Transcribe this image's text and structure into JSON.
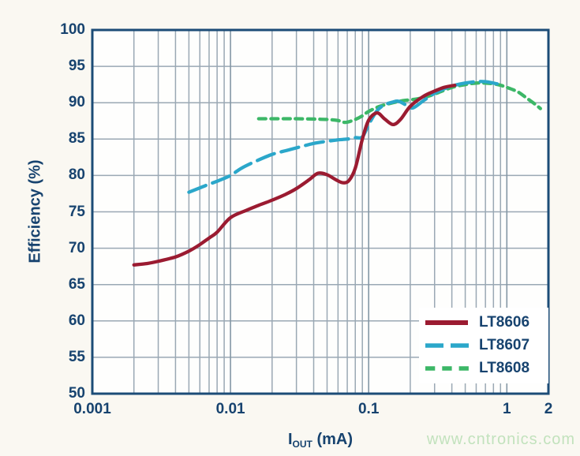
{
  "page": {
    "background": "#FAF8F2",
    "watermark": {
      "text": "www.cntronics.com",
      "color": "#C2E2BD"
    }
  },
  "chart_data": {
    "type": "line",
    "x_scale": "log",
    "xlabel_main": "I",
    "xlabel_sub": "OUT",
    "xlabel_unit": " (mA)",
    "ylabel": "Efficiency (%)",
    "xlim": [
      0.001,
      2
    ],
    "ylim": [
      50,
      100
    ],
    "grid": true,
    "legend_position": "bottom-right",
    "colors": {
      "axis_border": "#1C4C77",
      "grid_minor": "#9AA8B4",
      "grid_major": "#8497A5",
      "text": "#17436F",
      "plot_background": "#FEFEFD"
    },
    "x_axis": {
      "ticks": [
        {
          "value": 0.001,
          "label": "0.001"
        },
        {
          "value": 0.01,
          "label": "0.01"
        },
        {
          "value": 0.1,
          "label": "0.1"
        },
        {
          "value": 1,
          "label": "1"
        },
        {
          "value": 2,
          "label": "2"
        }
      ],
      "major_gridlines": [
        0.01,
        0.1,
        1
      ],
      "minor_gridlines": [
        0.002,
        0.003,
        0.004,
        0.005,
        0.006,
        0.007,
        0.008,
        0.009,
        0.02,
        0.03,
        0.04,
        0.05,
        0.06,
        0.07,
        0.08,
        0.09,
        0.2,
        0.3,
        0.4,
        0.5,
        0.6,
        0.7,
        0.8,
        0.9
      ]
    },
    "y_axis": {
      "ticks": [
        {
          "value": 100,
          "label": "100"
        },
        {
          "value": 95,
          "label": "95"
        },
        {
          "value": 90,
          "label": "90"
        },
        {
          "value": 85,
          "label": "85"
        },
        {
          "value": 80,
          "label": "80"
        },
        {
          "value": 75,
          "label": "75"
        },
        {
          "value": 70,
          "label": "70"
        },
        {
          "value": 65,
          "label": "65"
        },
        {
          "value": 60,
          "label": "60"
        },
        {
          "value": 55,
          "label": "55"
        },
        {
          "value": 50,
          "label": "50"
        }
      ],
      "gridlines": [
        55,
        60,
        65,
        70,
        75,
        80,
        85,
        90,
        95
      ]
    },
    "series": [
      {
        "name": "LT8606",
        "color": "#9B1B31",
        "style": "solid",
        "points": [
          [
            0.002,
            67.7
          ],
          [
            0.0025,
            67.9
          ],
          [
            0.003,
            68.2
          ],
          [
            0.004,
            68.8
          ],
          [
            0.005,
            69.6
          ],
          [
            0.006,
            70.5
          ],
          [
            0.007,
            71.4
          ],
          [
            0.008,
            72.2
          ],
          [
            0.01,
            74.2
          ],
          [
            0.013,
            75.2
          ],
          [
            0.016,
            75.9
          ],
          [
            0.02,
            76.6
          ],
          [
            0.025,
            77.4
          ],
          [
            0.03,
            78.2
          ],
          [
            0.037,
            79.4
          ],
          [
            0.043,
            80.3
          ],
          [
            0.05,
            80.1
          ],
          [
            0.058,
            79.4
          ],
          [
            0.065,
            79.0
          ],
          [
            0.072,
            79.3
          ],
          [
            0.08,
            81.0
          ],
          [
            0.09,
            85.0
          ],
          [
            0.1,
            87.6
          ],
          [
            0.115,
            88.6
          ],
          [
            0.13,
            87.8
          ],
          [
            0.15,
            87.0
          ],
          [
            0.17,
            87.7
          ],
          [
            0.2,
            89.5
          ],
          [
            0.25,
            90.9
          ],
          [
            0.3,
            91.6
          ],
          [
            0.35,
            92.1
          ],
          [
            0.42,
            92.4
          ]
        ]
      },
      {
        "name": "LT8607",
        "color": "#2BA7CA",
        "style": "long-dash",
        "points": [
          [
            0.005,
            77.7
          ],
          [
            0.006,
            78.3
          ],
          [
            0.007,
            78.8
          ],
          [
            0.008,
            79.2
          ],
          [
            0.01,
            80.0
          ],
          [
            0.012,
            81.0
          ],
          [
            0.015,
            81.9
          ],
          [
            0.02,
            82.9
          ],
          [
            0.025,
            83.4
          ],
          [
            0.03,
            83.8
          ],
          [
            0.04,
            84.4
          ],
          [
            0.05,
            84.7
          ],
          [
            0.06,
            84.9
          ],
          [
            0.07,
            85.0
          ],
          [
            0.08,
            85.2
          ],
          [
            0.09,
            85.3
          ],
          [
            0.1,
            87.0
          ],
          [
            0.115,
            88.9
          ],
          [
            0.13,
            89.7
          ],
          [
            0.15,
            90.1
          ],
          [
            0.165,
            90.2
          ],
          [
            0.19,
            89.6
          ],
          [
            0.21,
            89.3
          ],
          [
            0.25,
            90.3
          ],
          [
            0.3,
            91.3
          ],
          [
            0.35,
            91.9
          ],
          [
            0.4,
            92.3
          ],
          [
            0.5,
            92.7
          ],
          [
            0.6,
            92.9
          ],
          [
            0.7,
            92.9
          ],
          [
            0.8,
            92.7
          ],
          [
            0.85,
            92.6
          ]
        ]
      },
      {
        "name": "LT8608",
        "color": "#3CB767",
        "style": "short-dash",
        "points": [
          [
            0.016,
            87.8
          ],
          [
            0.02,
            87.8
          ],
          [
            0.025,
            87.8
          ],
          [
            0.03,
            87.8
          ],
          [
            0.04,
            87.75
          ],
          [
            0.05,
            87.7
          ],
          [
            0.06,
            87.55
          ],
          [
            0.068,
            87.3
          ],
          [
            0.08,
            87.7
          ],
          [
            0.09,
            88.2
          ],
          [
            0.1,
            88.8
          ],
          [
            0.12,
            89.5
          ],
          [
            0.15,
            90.0
          ],
          [
            0.18,
            90.3
          ],
          [
            0.22,
            90.5
          ],
          [
            0.27,
            90.9
          ],
          [
            0.32,
            91.4
          ],
          [
            0.4,
            92.1
          ],
          [
            0.5,
            92.5
          ],
          [
            0.6,
            92.7
          ],
          [
            0.7,
            92.7
          ],
          [
            0.8,
            92.6
          ],
          [
            0.9,
            92.4
          ],
          [
            1.0,
            92.1
          ],
          [
            1.2,
            91.5
          ],
          [
            1.4,
            90.6
          ],
          [
            1.6,
            89.8
          ],
          [
            1.75,
            89.2
          ]
        ]
      }
    ]
  }
}
